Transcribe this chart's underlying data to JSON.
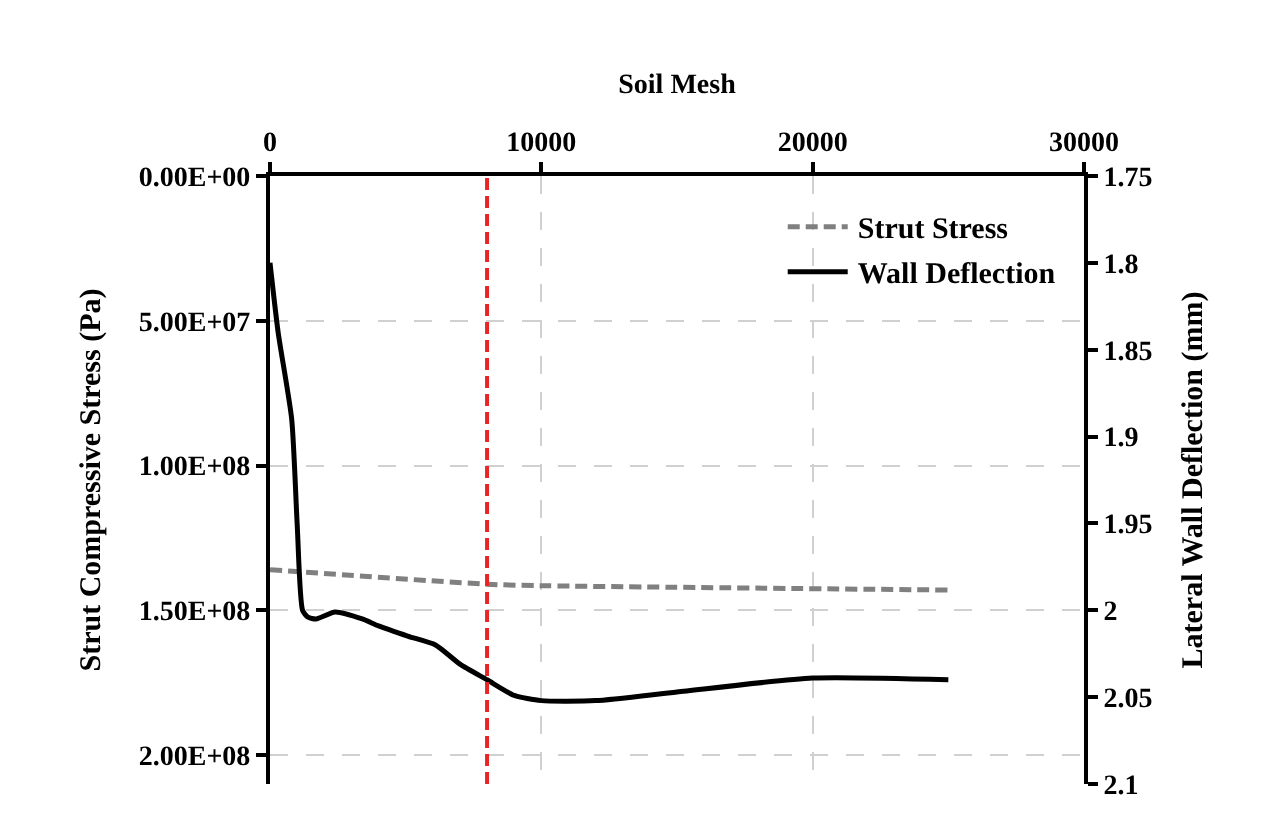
{
  "chart_data": {
    "type": "line",
    "xlabel": "Soil Mesh",
    "ylabel": "Strut Compressive Stress (Pa)",
    "y2label": "Lateral Wall Deflection (mm)",
    "xlim": [
      0,
      30000
    ],
    "xticks": [
      0,
      10000,
      20000,
      30000
    ],
    "ylim": [
      210000000.0,
      0
    ],
    "yticks": [
      {
        "value": 0,
        "label": "0.00E+00"
      },
      {
        "value": 50000000.0,
        "label": "5.00E+07"
      },
      {
        "value": 100000000.0,
        "label": "1.00E+08"
      },
      {
        "value": 150000000.0,
        "label": "1.50E+08"
      },
      {
        "value": 200000000.0,
        "label": "2.00E+08"
      }
    ],
    "y2lim": [
      2.1,
      1.75
    ],
    "y2ticks": [
      1.75,
      1.8,
      1.85,
      1.9,
      1.95,
      2,
      2.05,
      2.1
    ],
    "series": [
      {
        "name": "Strut Stress",
        "color": "#808080",
        "line_style": "dashed",
        "x": [
          0,
          8000,
          10000,
          25000
        ],
        "values": [
          136000000.0,
          141000000.0,
          141500000.0,
          143000000.0
        ]
      },
      {
        "name": "Wall Deflection",
        "color": "#000000",
        "line_style": "solid",
        "axis": "y2",
        "x": [
          0,
          300,
          800,
          1000,
          1200,
          1400,
          1700,
          2400,
          3400,
          4000,
          5100,
          6100,
          7000,
          8000,
          9000,
          10000,
          12000,
          15000,
          20000,
          25000
        ],
        "values": [
          1.8,
          1.84,
          1.89,
          1.95,
          2.0,
          2.004,
          2.005,
          2.001,
          2.005,
          2.009,
          2.015,
          2.02,
          2.031,
          2.04,
          2.049,
          2.052,
          2.052,
          2.047,
          2.039,
          2.04
        ]
      }
    ],
    "ref_lines": [
      {
        "axis": "x",
        "value": 8000,
        "color": "#e8262a",
        "line_style": "dashed"
      }
    ],
    "grid": true,
    "legend": "top right"
  }
}
